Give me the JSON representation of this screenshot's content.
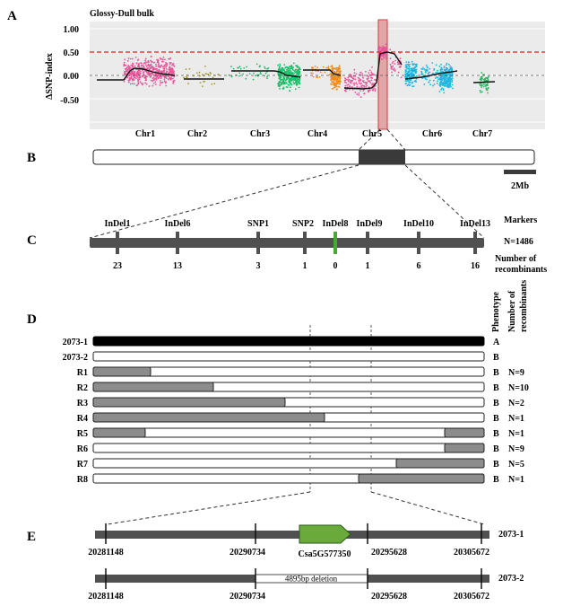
{
  "panels": {
    "A": {
      "label": "A",
      "title": "Glossy-Dull bulk",
      "ylabel": "ΔSNP-index",
      "yticks": [
        "1.00",
        "0.50",
        "0.00",
        "-0.50"
      ],
      "chromosomes": [
        "Chr1",
        "Chr2",
        "Chr3",
        "Chr4",
        "Chr5",
        "Chr6",
        "Chr7"
      ]
    },
    "B": {
      "label": "B",
      "scale_label": "2Mb"
    },
    "C": {
      "label": "C",
      "markers_header": "Markers",
      "n_label": "N=1486",
      "recomb_header_1": "Number of",
      "recomb_header_2": "recombinants",
      "markers": [
        {
          "name": "InDel1",
          "recombinants": "23"
        },
        {
          "name": "InDel6",
          "recombinants": "13"
        },
        {
          "name": "SNP1",
          "recombinants": "3"
        },
        {
          "name": "SNP2",
          "recombinants": "1"
        },
        {
          "name": "InDel8",
          "recombinants": "0"
        },
        {
          "name": "InDel9",
          "recombinants": "1"
        },
        {
          "name": "InDel10",
          "recombinants": "6"
        },
        {
          "name": "InDel13",
          "recombinants": "16"
        }
      ]
    },
    "D": {
      "label": "D",
      "header_phenotype": "Phenotype",
      "header_number_1": "Number of",
      "header_number_2": "recombinants",
      "rows": [
        {
          "name": "2073-1",
          "phenotype": "A",
          "n": ""
        },
        {
          "name": "2073-2",
          "phenotype": "B",
          "n": ""
        },
        {
          "name": "R1",
          "phenotype": "B",
          "n": "N=9"
        },
        {
          "name": "R2",
          "phenotype": "B",
          "n": "N=10"
        },
        {
          "name": "R3",
          "phenotype": "B",
          "n": "N=2"
        },
        {
          "name": "R4",
          "phenotype": "B",
          "n": "N=1"
        },
        {
          "name": "R5",
          "phenotype": "B",
          "n": "N=1"
        },
        {
          "name": "R6",
          "phenotype": "B",
          "n": "N=9"
        },
        {
          "name": "R7",
          "phenotype": "B",
          "n": "N=5"
        },
        {
          "name": "R8",
          "phenotype": "B",
          "n": "N=1"
        }
      ]
    },
    "E": {
      "label": "E",
      "line1_name": "2073-1",
      "line2_name": "2073-2",
      "gene": "Csa5G577350",
      "deletion": "4895bp deletion",
      "positions": [
        "20281148",
        "20290734",
        "20295628",
        "20305672"
      ]
    }
  },
  "colors": {
    "Chr1": "#e8559a",
    "Chr2": "#a89a2a",
    "Chr3": "#19c06a",
    "Chr4": "#ef8c1a",
    "Chr5": "#e8559a",
    "Chr6": "#19b8e0",
    "Chr7": "#2fb060",
    "threshold": "#e02020",
    "highlight": "#e0a0a0",
    "gene": "#6aaa3a",
    "marker_green": "#4aa832",
    "bar_dark": "#3a3a3a",
    "segment_grey": "#8c8c8c"
  }
}
